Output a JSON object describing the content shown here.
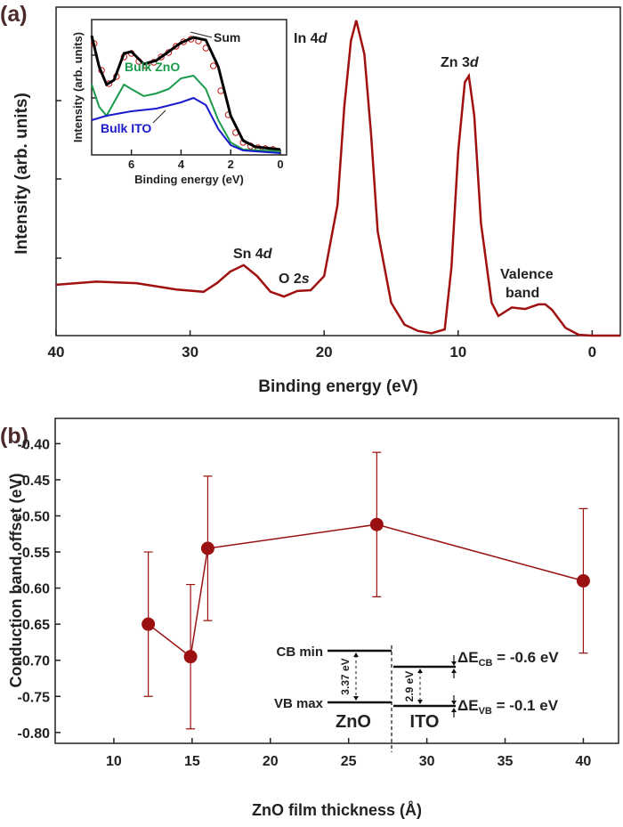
{
  "chart_data": [
    {
      "type": "line",
      "panel": "(a)",
      "xlabel": "Binding energy (eV)",
      "ylabel": "Intensity (arb. units)",
      "xlim": [
        40,
        -2.1
      ],
      "ylim": [
        0,
        4.2
      ],
      "xticks": [
        40,
        30,
        20,
        10,
        0
      ],
      "color": "#a01010",
      "x": [
        40,
        37,
        34,
        31,
        29,
        28,
        27,
        26,
        25,
        24,
        23,
        22,
        21,
        20,
        19,
        18.5,
        18,
        17.6,
        17,
        16.5,
        16,
        15,
        14,
        13,
        12,
        11,
        10.5,
        10,
        9.5,
        9.2,
        8.8,
        8.3,
        7.5,
        7,
        6,
        5,
        4,
        3.5,
        3,
        2,
        1,
        0,
        -2.1
      ],
      "values": [
        0.65,
        0.69,
        0.67,
        0.59,
        0.56,
        0.67,
        0.82,
        0.9,
        0.76,
        0.56,
        0.5,
        0.57,
        0.58,
        0.76,
        1.67,
        2.92,
        3.77,
        4.03,
        3.6,
        2.58,
        1.33,
        0.42,
        0.14,
        0.06,
        0.03,
        0.08,
        0.88,
        2.35,
        3.24,
        3.32,
        2.81,
        1.44,
        0.42,
        0.25,
        0.36,
        0.34,
        0.4,
        0.4,
        0.33,
        0.1,
        0.01,
        0,
        0
      ],
      "annotations": [
        {
          "text": "Sn 4",
          "italic": "d"
        },
        {
          "text": "O 2",
          "italic": "s"
        },
        {
          "text": "In 4",
          "italic": "d"
        },
        {
          "text": "Zn 3",
          "italic": "d"
        },
        {
          "text": "Valence"
        },
        {
          "text": "band"
        }
      ]
    },
    {
      "type": "line",
      "xlabel": "Binding energy (eV)",
      "ylabel": "Intensity (arb. units)",
      "xlim": [
        7.6,
        -0.25
      ],
      "ylim": [
        0,
        1.52
      ],
      "xticks": [
        6,
        4,
        2,
        0
      ],
      "series": [
        {
          "color": "#c01818",
          "marker": "circle",
          "x": [
            7.5,
            7.2,
            6.9,
            6.6,
            6.3,
            6.0,
            5.7,
            5.4,
            5.1,
            4.8,
            4.5,
            4.2,
            3.9,
            3.6,
            3.3,
            3.0,
            2.7,
            2.4,
            2.1,
            1.8,
            1.5,
            1.2,
            0.9,
            0.6,
            0.3
          ],
          "values": [
            1.25,
            0.95,
            0.8,
            0.88,
            1.1,
            1.14,
            1.05,
            1.0,
            1.04,
            1.1,
            1.15,
            1.22,
            1.27,
            1.3,
            1.28,
            1.2,
            1.0,
            0.72,
            0.45,
            0.25,
            0.14,
            0.1,
            0.08,
            0.07,
            0.06
          ]
        },
        {
          "name": "Sum",
          "color": "#000000",
          "x": [
            7.6,
            7.3,
            7.0,
            6.7,
            6.3,
            6.0,
            5.5,
            5.0,
            4.5,
            4.0,
            3.5,
            3.0,
            2.5,
            2.0,
            1.5,
            1.0,
            0
          ],
          "values": [
            1.34,
            0.99,
            0.79,
            0.84,
            1.14,
            1.16,
            1.02,
            1.06,
            1.16,
            1.26,
            1.32,
            1.29,
            0.99,
            0.44,
            0.16,
            0.09,
            0.06
          ]
        },
        {
          "name": "Bulk ZnO",
          "color": "#1a9a4a",
          "x": [
            7.6,
            7.3,
            7.0,
            6.7,
            6.3,
            6.0,
            5.5,
            5.0,
            4.5,
            4.0,
            3.5,
            3.0,
            2.5,
            2.0,
            1.5,
            0
          ],
          "values": [
            0.79,
            0.54,
            0.44,
            0.59,
            0.79,
            0.74,
            0.66,
            0.69,
            0.74,
            0.86,
            0.89,
            0.74,
            0.39,
            0.14,
            0.06,
            0.04
          ]
        },
        {
          "name": "Bulk ITO",
          "color": "#1a1acc",
          "x": [
            7.6,
            7.0,
            6.0,
            5.0,
            4.0,
            3.5,
            3.0,
            2.5,
            2.0,
            1.5,
            0
          ],
          "values": [
            0.39,
            0.44,
            0.49,
            0.52,
            0.59,
            0.64,
            0.56,
            0.29,
            0.11,
            0.05,
            0.02
          ]
        }
      ]
    },
    {
      "type": "scatter",
      "panel": "(b)",
      "xlabel": "ZnO film thickness (Å)",
      "ylabel": "Conduction band offset (eV)",
      "xlim": [
        6.25,
        42.25
      ],
      "ylim": [
        -0.815,
        -0.365
      ],
      "xticks": [
        10,
        15,
        20,
        25,
        30,
        35,
        40
      ],
      "yticks": [
        {
          "value": -0.4,
          "label": "-0.40"
        },
        -0.45,
        {
          "value": -0.5,
          "label": "-0.50"
        },
        -0.55,
        {
          "value": -0.6,
          "label": "-0.60"
        },
        -0.65,
        {
          "value": -0.7,
          "label": "-0.70"
        },
        -0.75,
        {
          "value": -0.8,
          "label": "-0.80"
        }
      ],
      "color": "#9b1111",
      "x": [
        12.2,
        14.9,
        16,
        26.8,
        40
      ],
      "values": [
        -0.65,
        -0.695,
        -0.545,
        -0.512,
        -0.59
      ],
      "errors": [
        0.1,
        0.1,
        0.1,
        0.1,
        0.1
      ],
      "diagram": {
        "cb": "CB min",
        "vb": "VB max",
        "gap_zno": "3.37 eV",
        "gap_ito": "2.9 eV",
        "zno": "ZnO",
        "ito": "ITO",
        "dcb": {
          "main": "ΔE",
          "sub": "CB",
          "rest": " = -0.6 eV"
        },
        "dvb": {
          "main": "ΔE",
          "sub": "VB",
          "rest": " = -0.1 eV"
        }
      }
    }
  ]
}
